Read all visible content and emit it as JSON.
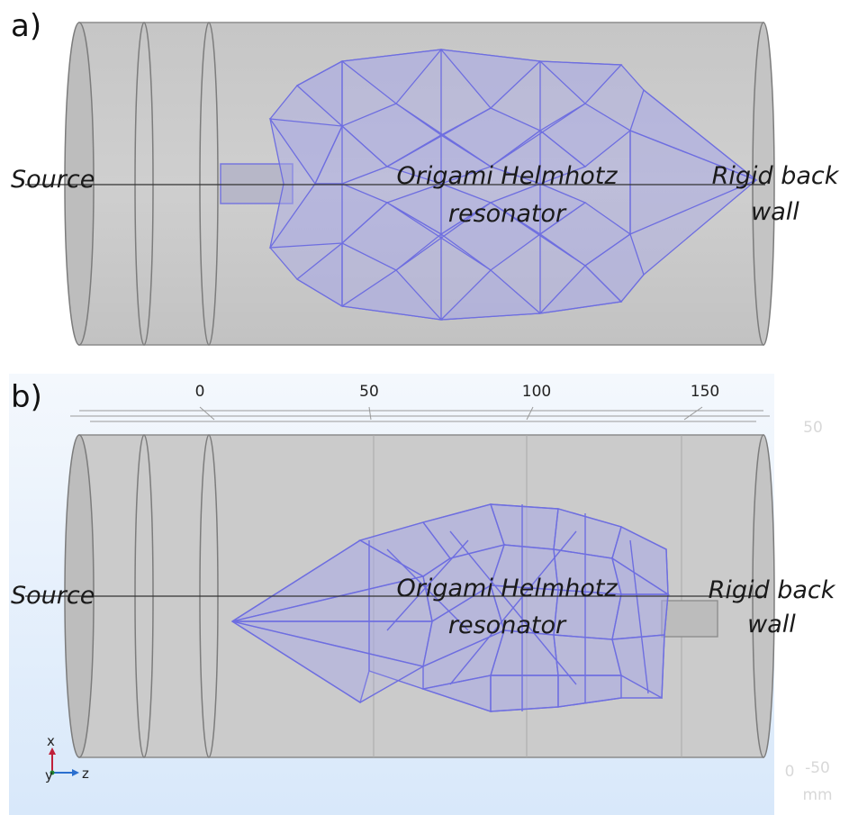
{
  "panel_a": {
    "tag": "a)",
    "labels": {
      "source": "Source",
      "resonator_line1": "Origami Helmhotz",
      "resonator_line2": "resonator",
      "wall_line1": "Rigid back",
      "wall_line2": "wall"
    }
  },
  "panel_b": {
    "tag": "b)",
    "ruler_ticks": [
      "0",
      "50",
      "100",
      "150"
    ],
    "side_ticks": [
      "50",
      "0",
      "-50"
    ],
    "side_unit": "mm",
    "labels": {
      "source": "Source",
      "resonator_line1": "Origami Helmhotz",
      "resonator_line2": "resonator",
      "wall_line1": "Rigid back",
      "wall_line2": "wall"
    },
    "axis_triad": {
      "x": "x",
      "y": "y",
      "z": "z"
    }
  },
  "colors": {
    "cylinder": "#cbcbcb",
    "cylinder_edge": "#8c8c8c",
    "origami_fill": "#a9a9e6",
    "origami_edge": "#6e6ee0",
    "viewport_bg_b": "#e3eefb"
  }
}
